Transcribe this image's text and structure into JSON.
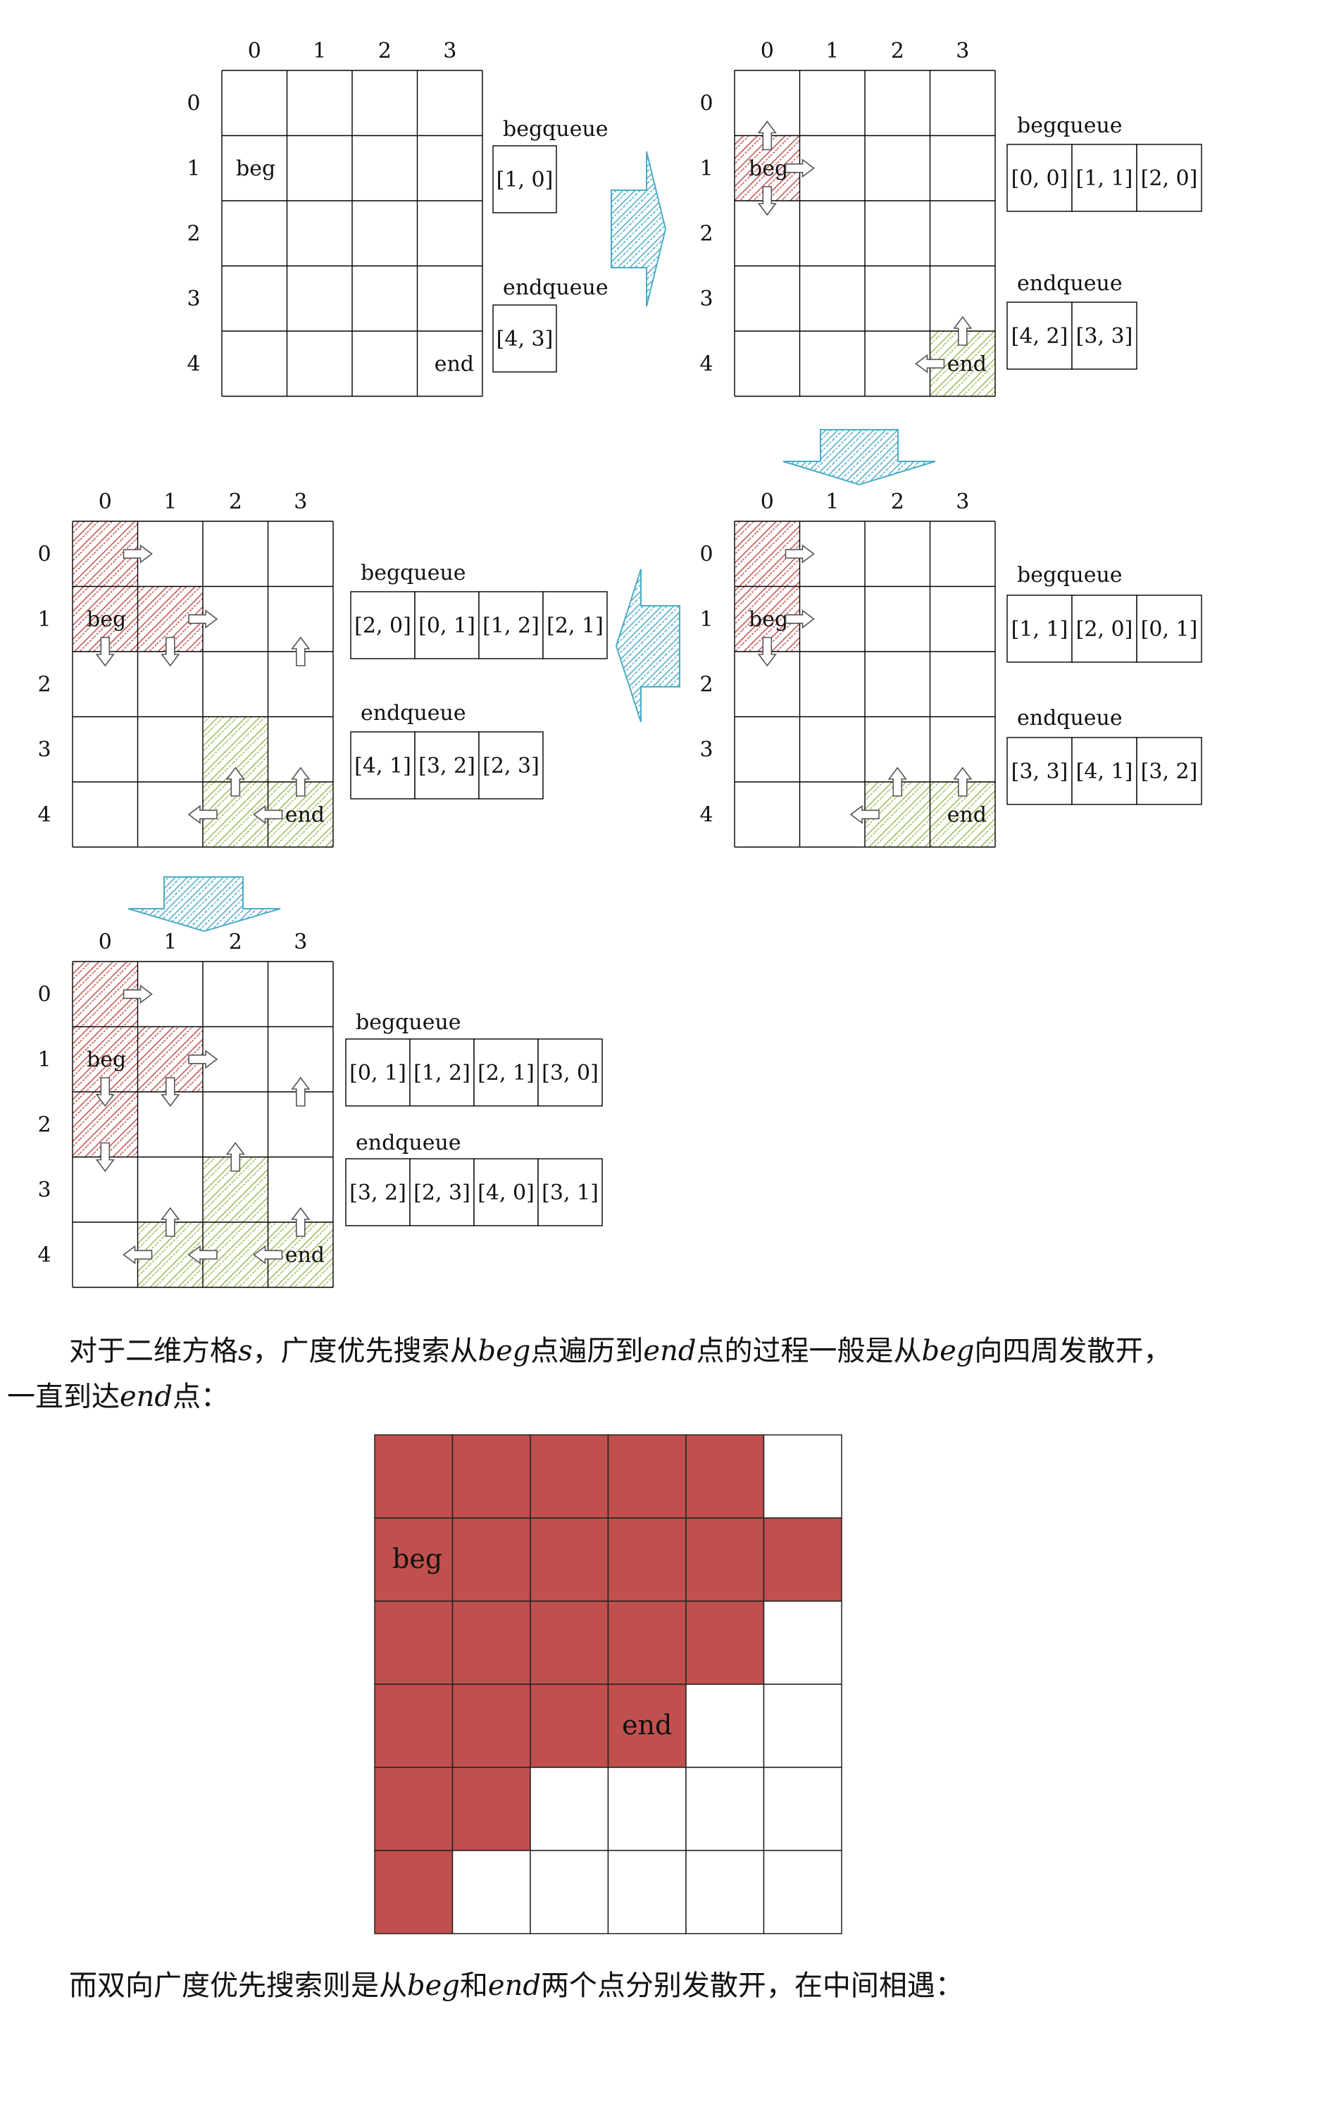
{
  "colors": {
    "begFill": "#c0504d",
    "begHatch": "#c0504d",
    "endHatch": "#9bbb59",
    "transArrow": "#4bacc6",
    "grid": "#000000"
  },
  "queue_labels": {
    "beg": "begqueue",
    "end": "endqueue"
  },
  "cell_labels": {
    "beg": "beg",
    "end": "end"
  },
  "col_headers": [
    "0",
    "1",
    "2",
    "3"
  ],
  "row_headers": [
    "0",
    "1",
    "2",
    "3",
    "4"
  ],
  "panels": [
    {
      "id": "p1",
      "begCells": [],
      "endCells": [],
      "begLabelCell": [
        1,
        0
      ],
      "endLabelCell": [
        4,
        3
      ],
      "arrows": [],
      "begQueue": [
        "[1, 0]"
      ],
      "endQueue": [
        "[4, 3]"
      ]
    },
    {
      "id": "p2",
      "begCells": [
        [
          1,
          0
        ]
      ],
      "endCells": [
        [
          4,
          3
        ]
      ],
      "begLabelCell": [
        1,
        0
      ],
      "endLabelCell": [
        4,
        3
      ],
      "arrows": [
        [
          "up",
          1,
          0
        ],
        [
          "right",
          1,
          0
        ],
        [
          "down",
          1,
          0
        ],
        [
          "up",
          4,
          3
        ],
        [
          "left",
          4,
          3
        ]
      ],
      "begQueue": [
        "[0, 0]",
        "[1, 1]",
        "[2, 0]"
      ],
      "endQueue": [
        "[4, 2]",
        "[3, 3]"
      ]
    },
    {
      "id": "p3",
      "begCells": [
        [
          0,
          0
        ],
        [
          1,
          0
        ]
      ],
      "endCells": [
        [
          4,
          2
        ],
        [
          4,
          3
        ]
      ],
      "begLabelCell": [
        1,
        0
      ],
      "endLabelCell": [
        4,
        3
      ],
      "arrows": [
        [
          "right",
          0,
          0
        ],
        [
          "right",
          1,
          0
        ],
        [
          "down",
          1,
          0
        ],
        [
          "up",
          4,
          2
        ],
        [
          "left",
          4,
          2
        ],
        [
          "up",
          4,
          3
        ]
      ],
      "begQueue": [
        "[1, 1]",
        "[2, 0]",
        "[0, 1]"
      ],
      "endQueue": [
        "[3, 3]",
        "[4, 1]",
        "[3, 2]"
      ]
    },
    {
      "id": "p4",
      "begCells": [
        [
          0,
          0
        ],
        [
          1,
          0
        ],
        [
          1,
          1
        ]
      ],
      "endCells": [
        [
          3,
          2
        ],
        [
          4,
          2
        ],
        [
          4,
          3
        ]
      ],
      "begLabelCell": [
        1,
        0
      ],
      "endLabelCell": [
        4,
        3
      ],
      "arrows": [
        [
          "right",
          0,
          0
        ],
        [
          "right",
          1,
          1
        ],
        [
          "down",
          1,
          0
        ],
        [
          "down",
          1,
          1
        ],
        [
          "up",
          2,
          3
        ],
        [
          "up",
          4,
          2
        ],
        [
          "left",
          4,
          2
        ],
        [
          "up",
          4,
          3
        ],
        [
          "left",
          4,
          3
        ]
      ],
      "begQueue": [
        "[2, 0]",
        "[0, 1]",
        "[1, 2]",
        "[2, 1]"
      ],
      "endQueue": [
        "[4, 1]",
        "[3, 2]",
        "[2, 3]"
      ]
    },
    {
      "id": "p5",
      "begCells": [
        [
          0,
          0
        ],
        [
          1,
          0
        ],
        [
          1,
          1
        ],
        [
          2,
          0
        ]
      ],
      "endCells": [
        [
          3,
          2
        ],
        [
          4,
          1
        ],
        [
          4,
          2
        ],
        [
          4,
          3
        ]
      ],
      "begLabelCell": [
        1,
        0
      ],
      "endLabelCell": [
        4,
        3
      ],
      "arrows": [
        [
          "right",
          0,
          0
        ],
        [
          "right",
          1,
          1
        ],
        [
          "down",
          1,
          0
        ],
        [
          "down",
          1,
          1
        ],
        [
          "down",
          2,
          0
        ],
        [
          "up",
          2,
          3
        ],
        [
          "up",
          3,
          2
        ],
        [
          "up",
          4,
          1
        ],
        [
          "left",
          4,
          1
        ],
        [
          "up",
          4,
          3
        ],
        [
          "left",
          4,
          2
        ],
        [
          "left",
          4,
          3
        ]
      ],
      "begQueue": [
        "[0, 1]",
        "[1, 2]",
        "[2, 1]",
        "[3, 0]"
      ],
      "endQueue": [
        "[3, 2]",
        "[2, 3]",
        "[4, 0]",
        "[3, 1]"
      ]
    }
  ],
  "paragraph1": {
    "line1": [
      "对于二维方格",
      "s",
      "，广度优先搜索从",
      "beg",
      "点遍历到",
      "end",
      "点的过程一般是从",
      "beg",
      "向四周发散开，"
    ],
    "line2": [
      "一直到达",
      "end",
      "点："
    ]
  },
  "big_grid": {
    "rows": 6,
    "cols": 6,
    "filled": [
      [
        1,
        1,
        1,
        1,
        1,
        0
      ],
      [
        1,
        1,
        1,
        1,
        1,
        1
      ],
      [
        1,
        1,
        1,
        1,
        1,
        0
      ],
      [
        1,
        1,
        1,
        1,
        0,
        0
      ],
      [
        1,
        1,
        0,
        0,
        0,
        0
      ],
      [
        1,
        0,
        0,
        0,
        0,
        0
      ]
    ],
    "begCell": [
      1,
      0
    ],
    "endCell": [
      3,
      3
    ]
  },
  "paragraph2": [
    "而双向广度优先搜索则是从",
    "beg",
    "和",
    "end",
    "两个点分别发散开，在中间相遇："
  ]
}
